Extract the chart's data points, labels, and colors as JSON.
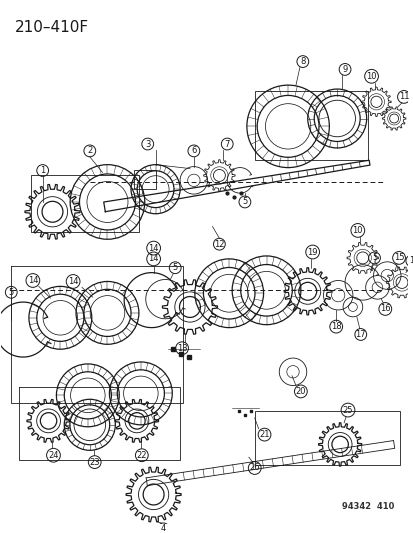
{
  "title": "210–410F",
  "footnote": "94342  410",
  "bg_color": "#ffffff",
  "line_color": "#1a1a1a",
  "fig_width": 4.14,
  "fig_height": 5.33,
  "dpi": 100
}
